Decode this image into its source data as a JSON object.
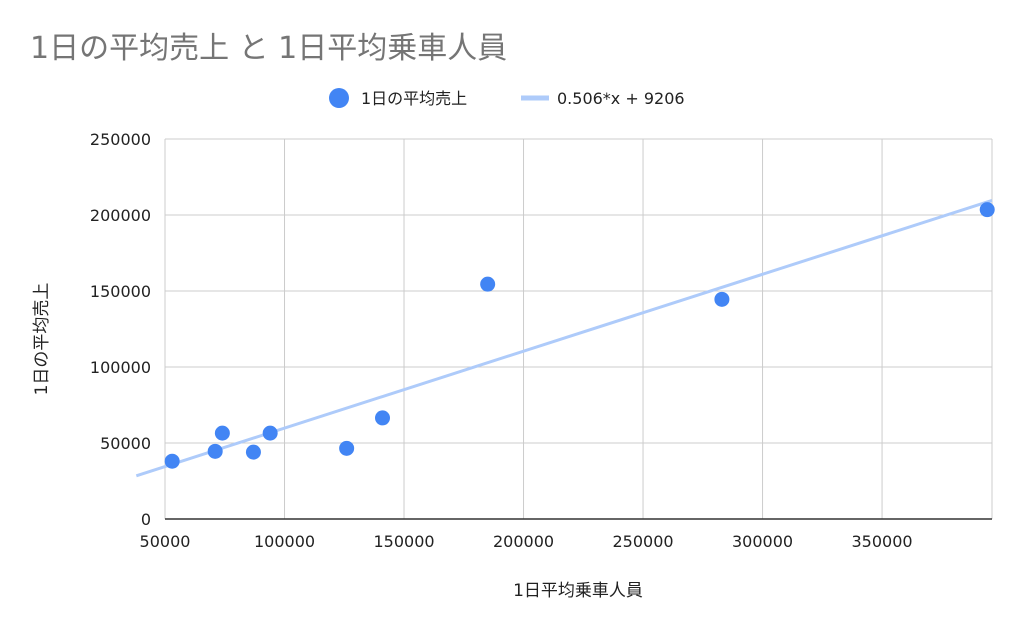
{
  "chart_data": {
    "type": "scatter",
    "title": "1日の平均売上 と 1日平均乗車人員",
    "xlabel": "1日平均乗車人員",
    "ylabel": "1日の平均売上",
    "xlim": [
      50000,
      396000
    ],
    "ylim": [
      0,
      250000
    ],
    "x_ticks": [
      "50000",
      "100000",
      "150000",
      "200000",
      "250000",
      "300000",
      "350000"
    ],
    "y_ticks": [
      "0",
      "50000",
      "100000",
      "150000",
      "200000",
      "250000"
    ],
    "grid": true,
    "legend_position": "top",
    "series": [
      {
        "name": "1日の平均売上",
        "color": "#4285f4",
        "points": [
          {
            "x": 53000,
            "y": 38000
          },
          {
            "x": 71000,
            "y": 44500
          },
          {
            "x": 74000,
            "y": 56500
          },
          {
            "x": 87000,
            "y": 44000
          },
          {
            "x": 94000,
            "y": 56500
          },
          {
            "x": 126000,
            "y": 46500
          },
          {
            "x": 141000,
            "y": 66500
          },
          {
            "x": 185000,
            "y": 154500
          },
          {
            "x": 283000,
            "y": 144500
          },
          {
            "x": 394000,
            "y": 203500
          }
        ]
      }
    ],
    "trendline": {
      "label": "0.506*x + 9206",
      "slope": 0.506,
      "intercept": 9206,
      "color": "#aecbfa"
    }
  }
}
